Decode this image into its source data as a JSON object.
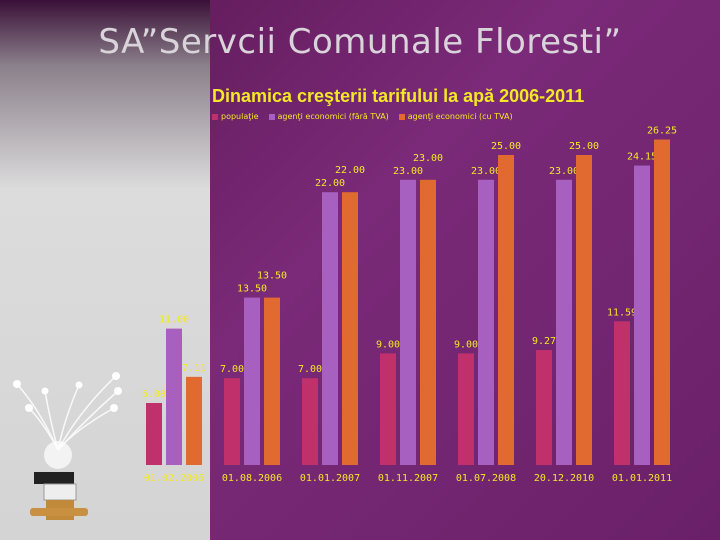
{
  "title": "SA”Servcii Comunale Floresti”",
  "chart_data": {
    "type": "bar",
    "title": "Dinamica creşterii tarifului la apă 2006-2011",
    "categories": [
      "01.02.2006",
      "01.08.2006",
      "01.01.2007",
      "01.11.2007",
      "01.07.2008",
      "20.12.2010",
      "01.01.2011"
    ],
    "series": [
      {
        "name": "populaţie",
        "color": "#c0306a",
        "values": [
          5.0,
          7.0,
          7.0,
          9.0,
          9.0,
          9.27,
          11.59
        ]
      },
      {
        "name": "agenţi economici (fără TVA)",
        "color": "#a860c0",
        "values": [
          11.0,
          13.5,
          22.0,
          23.0,
          23.0,
          23.0,
          24.15
        ]
      },
      {
        "name": "agenţi economici (cu TVA)",
        "color": "#e06a30",
        "values": [
          7.11,
          13.5,
          22.0,
          23.0,
          25.0,
          25.0,
          26.25
        ]
      }
    ],
    "data_labels": [
      [
        "5.00",
        "7.00",
        "7.00",
        "9.00",
        "9.00",
        "9.27",
        "11.59"
      ],
      [
        "11.00",
        "13.50",
        "22.00",
        "23.00",
        "23.00",
        "23.00",
        "24.15"
      ],
      [
        "7.11",
        "13.50",
        "22.00",
        "23.00",
        "25.00",
        "25.00",
        "26.25"
      ]
    ],
    "ylim": [
      0,
      28
    ],
    "grid": false,
    "legend": "top"
  }
}
